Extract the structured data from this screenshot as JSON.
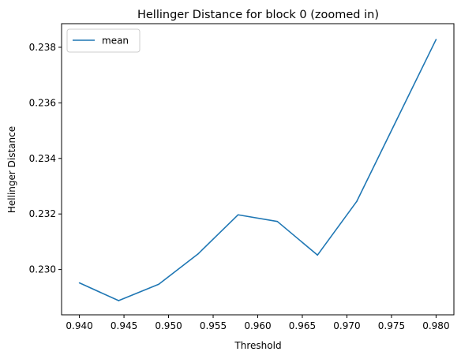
{
  "chart_data": {
    "type": "line",
    "title": "Hellinger Distance for block 0 (zoomed in)",
    "xlabel": "Threshold",
    "ylabel": "Hellinger Distance",
    "xlim": [
      0.938,
      0.982
    ],
    "ylim": [
      0.22837,
      0.23885
    ],
    "x_ticks": [
      0.94,
      0.945,
      0.95,
      0.955,
      0.96,
      0.965,
      0.97,
      0.975,
      0.98
    ],
    "x_tick_labels": [
      "0.940",
      "0.945",
      "0.950",
      "0.955",
      "0.960",
      "0.965",
      "0.970",
      "0.975",
      "0.980"
    ],
    "y_ticks": [
      0.23,
      0.232,
      0.234,
      0.236,
      0.238
    ],
    "y_tick_labels": [
      "0.230",
      "0.232",
      "0.234",
      "0.236",
      "0.238"
    ],
    "grid": false,
    "legend_position": "upper-left",
    "series": [
      {
        "name": "mean",
        "color": "#1f77b4",
        "x": [
          0.94,
          0.9444,
          0.9489,
          0.9533,
          0.9578,
          0.9622,
          0.9667,
          0.9711,
          0.9756,
          0.98
        ],
        "values": [
          0.22952,
          0.22888,
          0.22947,
          0.23056,
          0.23197,
          0.23173,
          0.23052,
          0.23245,
          0.2354,
          0.23828
        ]
      }
    ]
  }
}
